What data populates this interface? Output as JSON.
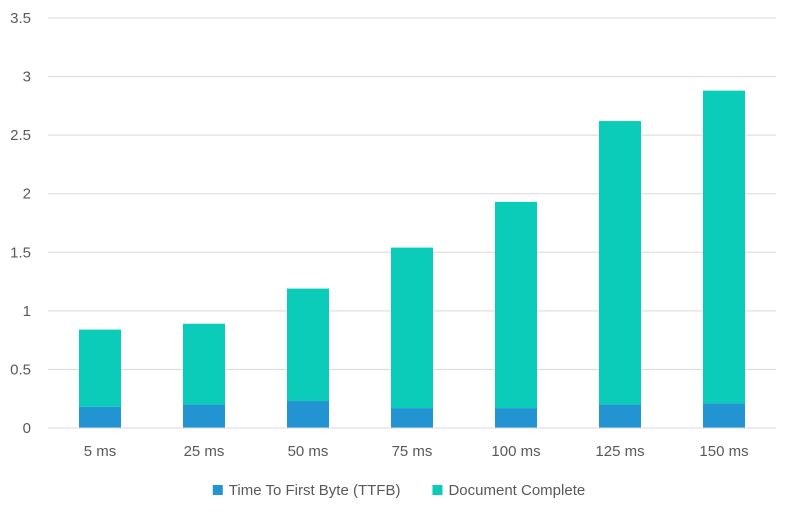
{
  "chart_data": {
    "type": "bar",
    "stacked": true,
    "categories": [
      "5 ms",
      "25 ms",
      "50 ms",
      "75 ms",
      "100 ms",
      "125 ms",
      "150 ms"
    ],
    "series": [
      {
        "name": "Time To First Byte (TTFB)",
        "color": "#2294D2",
        "values": [
          0.18,
          0.2,
          0.23,
          0.17,
          0.17,
          0.2,
          0.21
        ]
      },
      {
        "name": "Document Complete",
        "color": "#0ACCB8",
        "values": [
          0.66,
          0.69,
          0.96,
          1.37,
          1.76,
          2.42,
          2.67
        ]
      }
    ],
    "ylim": [
      0,
      3.5
    ],
    "yticks": [
      "0",
      "0.5",
      "1",
      "1.5",
      "2",
      "2.5",
      "3",
      "3.5"
    ],
    "grid": true,
    "legend_position": "bottom"
  }
}
